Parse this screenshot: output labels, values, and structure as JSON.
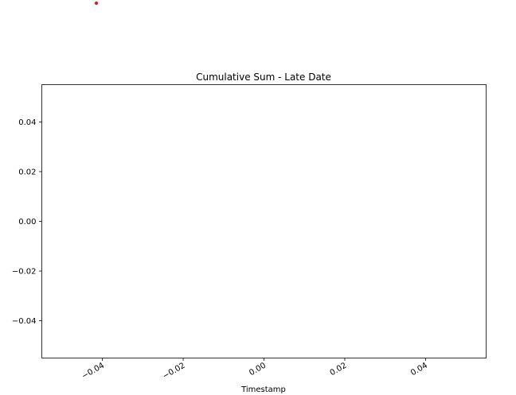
{
  "chart_data": {
    "type": "line",
    "title": "Cumulative Sum - Late Date",
    "xlabel": "Timestamp",
    "ylabel": "",
    "xlim": [
      -0.055,
      0.055
    ],
    "ylim": [
      -0.055,
      0.055
    ],
    "x_ticks": [
      -0.04,
      -0.02,
      0.0,
      0.02,
      0.04
    ],
    "x_tick_labels": [
      "−0.04",
      "−0.02",
      "0.00",
      "0.02",
      "0.04"
    ],
    "y_ticks": [
      0.04,
      0.02,
      0.0,
      -0.02,
      -0.04
    ],
    "y_tick_labels": [
      "0.04",
      "0.02",
      "0.00",
      "−0.02",
      "−0.04"
    ],
    "grid": false,
    "series": [],
    "marker_color": "#d62728",
    "frame_color": "#000000"
  }
}
